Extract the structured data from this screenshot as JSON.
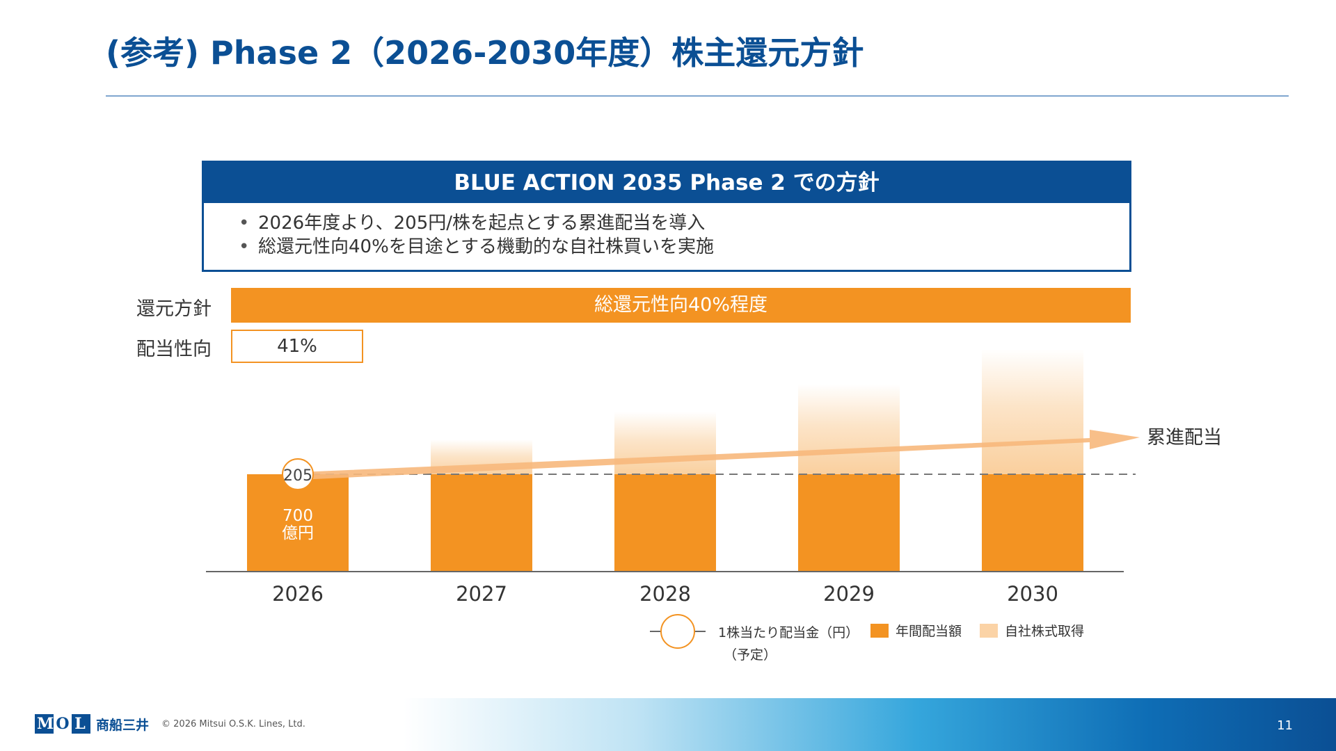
{
  "page": {
    "title": "(参考) Phase 2（2026-2030年度）株主還元方針",
    "page_number": "11"
  },
  "policy_box": {
    "header": "BLUE ACTION 2035 Phase 2 での方針",
    "bullets": [
      "2026年度より、205円/株を起点とする累進配当を導入",
      "総還元性向40%を目途とする機動的な自社株買いを実施"
    ]
  },
  "rows": {
    "return_policy_label": "還元方針",
    "return_policy_value": "総還元性向40%程度",
    "payout_ratio_label": "配当性向",
    "payout_ratio_value": "41%"
  },
  "chart_data": {
    "type": "bar",
    "categories": [
      "2026",
      "2027",
      "2028",
      "2029",
      "2030"
    ],
    "series": [
      {
        "name": "年間配当額",
        "values": [
          700,
          700,
          700,
          700,
          700
        ]
      },
      {
        "name": "自社株式取得",
        "values": [
          0,
          250,
          450,
          650,
          900
        ]
      }
    ],
    "dividend_per_share_start": 205,
    "annotations": {
      "dividend_total_label": [
        "700",
        "億円"
      ],
      "trend_label": "累進配当"
    },
    "legend": {
      "marker_label": [
        "1株当たり配当金（円）",
        "（予定）"
      ],
      "annual_dividend": "年間配当額",
      "buyback": "自社株式取得"
    },
    "colors": {
      "annual_dividend": "#f39322",
      "buyback": "#fbd3a6",
      "arrow": "#f7b87c"
    },
    "legend_position": "bottom"
  },
  "footer": {
    "logo_letters": [
      "M",
      "O",
      "L"
    ],
    "logo_text": "商船三井",
    "copyright": "© 2026 Mitsui O.S.K. Lines, Ltd."
  }
}
